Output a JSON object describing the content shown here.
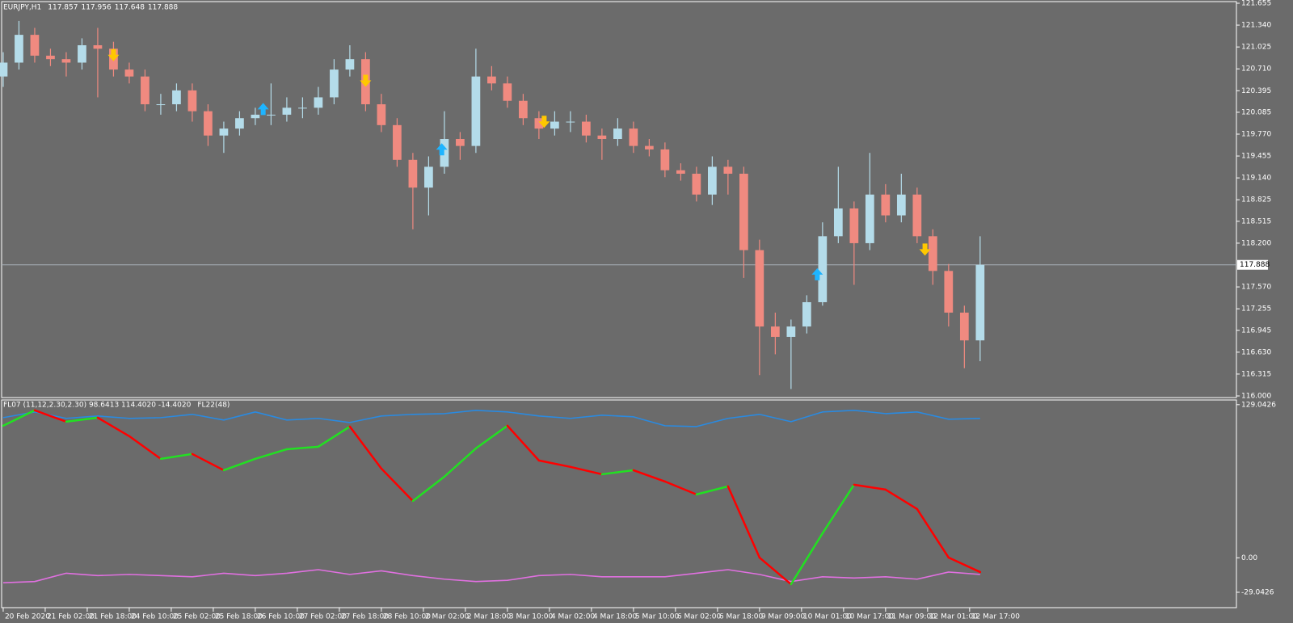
{
  "chart_data": [
    {
      "type": "candlestick",
      "title": "EURJPY,H1",
      "ohlc": [
        "117.857",
        "117.956",
        "117.648",
        "117.888"
      ],
      "x": [
        0,
        6,
        12,
        18,
        24,
        30,
        36,
        42,
        48,
        54,
        60,
        66,
        72,
        78,
        84,
        90,
        96,
        102,
        108,
        114,
        120,
        126,
        132,
        138,
        144,
        150,
        156,
        162,
        168,
        174,
        180,
        186,
        192,
        198,
        204,
        210,
        216,
        222,
        228,
        234,
        240,
        246,
        252,
        258,
        264,
        270,
        276,
        282,
        288,
        294,
        300,
        306,
        312,
        318,
        324,
        330,
        336,
        342,
        348,
        354,
        360,
        366,
        372
      ],
      "open": [
        120.6,
        120.8,
        121.2,
        120.9,
        120.85,
        120.8,
        121.05,
        121.0,
        120.7,
        120.6,
        120.2,
        120.2,
        120.4,
        120.1,
        119.75,
        119.85,
        120.0,
        120.05,
        120.05,
        120.15,
        120.15,
        120.3,
        120.7,
        120.85,
        120.2,
        119.9,
        119.4,
        119.0,
        119.3,
        119.7,
        119.6,
        120.6,
        120.5,
        120.25,
        120.0,
        119.85,
        119.95,
        119.95,
        119.75,
        119.7,
        119.85,
        119.6,
        119.55,
        119.25,
        119.2,
        118.9,
        119.3,
        119.2,
        118.1,
        117.0,
        116.85,
        117.0,
        117.35,
        118.3,
        118.7,
        118.2,
        118.9,
        118.6,
        118.9,
        118.3,
        117.8,
        117.2,
        116.8
      ],
      "high": [
        120.95,
        121.4,
        121.3,
        121.0,
        120.95,
        121.15,
        121.3,
        121.1,
        120.8,
        120.7,
        120.35,
        120.5,
        120.5,
        120.2,
        119.95,
        120.1,
        120.15,
        120.5,
        120.3,
        120.3,
        120.45,
        120.85,
        121.05,
        120.95,
        120.35,
        120.0,
        119.5,
        119.45,
        120.1,
        119.8,
        121.0,
        120.75,
        120.6,
        120.35,
        120.1,
        120.1,
        120.1,
        120.05,
        119.85,
        120.0,
        119.95,
        119.7,
        119.65,
        119.35,
        119.3,
        119.45,
        119.4,
        119.3,
        118.25,
        117.2,
        117.1,
        117.45,
        118.5,
        119.3,
        118.8,
        119.5,
        119.05,
        119.2,
        119.0,
        118.4,
        117.9,
        117.3,
        118.3
      ],
      "low": [
        120.45,
        120.7,
        120.8,
        120.75,
        120.6,
        120.7,
        120.3,
        120.6,
        120.5,
        120.1,
        120.05,
        120.1,
        119.95,
        119.6,
        119.5,
        119.75,
        119.9,
        119.9,
        119.95,
        120.0,
        120.05,
        120.2,
        120.6,
        120.1,
        119.8,
        119.3,
        118.4,
        118.6,
        119.2,
        119.4,
        119.5,
        120.4,
        120.15,
        119.9,
        119.7,
        119.75,
        119.8,
        119.65,
        119.4,
        119.6,
        119.5,
        119.45,
        119.15,
        119.1,
        118.8,
        118.75,
        118.9,
        117.7,
        116.3,
        116.6,
        116.1,
        116.9,
        117.3,
        118.2,
        117.6,
        118.1,
        118.5,
        118.5,
        118.2,
        117.6,
        117.0,
        116.4,
        116.5
      ],
      "close": [
        120.8,
        121.2,
        120.9,
        120.85,
        120.8,
        121.05,
        121.0,
        120.7,
        120.6,
        120.2,
        120.2,
        120.4,
        120.1,
        119.75,
        119.85,
        120.0,
        120.05,
        120.05,
        120.15,
        120.15,
        120.3,
        120.7,
        120.85,
        120.2,
        119.9,
        119.4,
        119.0,
        119.3,
        119.7,
        119.6,
        120.6,
        120.5,
        120.25,
        120.0,
        119.85,
        119.95,
        119.95,
        119.75,
        119.7,
        119.85,
        119.6,
        119.55,
        119.25,
        119.2,
        118.9,
        119.3,
        119.2,
        118.1,
        117.0,
        116.85,
        117.0,
        117.35,
        118.3,
        118.7,
        118.2,
        118.9,
        118.6,
        118.9,
        118.3,
        117.8,
        117.2,
        116.8,
        117.888
      ],
      "up_color": "#b4dcea",
      "down_color": "#f08a80",
      "xlim": [
        -0.6,
        469.6
      ],
      "ylim": [
        116.0,
        121.655
      ],
      "yticks": [
        121.655,
        {
          "value": 121.34,
          "label": "121.340"
        },
        121.025,
        {
          "value": 120.71,
          "label": "120.710"
        },
        120.395,
        120.085,
        {
          "value": 119.77,
          "label": "119.770"
        },
        119.455,
        {
          "value": 119.14,
          "label": "119.140"
        },
        118.825,
        118.515,
        {
          "value": 118.2,
          "label": "118.200"
        },
        {
          "value": 117.57,
          "label": "117.570"
        },
        117.255,
        116.945,
        {
          "value": 116.63,
          "label": "116.630"
        },
        116.315,
        {
          "value": 116.0,
          "label": "116.000"
        }
      ],
      "xticks": [
        {
          "value": 0,
          "label": "20 Feb 2020"
        },
        {
          "value": 16,
          "label": "21 Feb 02:00"
        },
        {
          "value": 32,
          "label": "21 Feb 18:00"
        },
        {
          "value": 48,
          "label": "24 Feb 10:00"
        },
        {
          "value": 64,
          "label": "25 Feb 02:00"
        },
        {
          "value": 80,
          "label": "25 Feb 18:00"
        },
        {
          "value": 96,
          "label": "26 Feb 10:00"
        },
        {
          "value": 112,
          "label": "27 Feb 02:00"
        },
        {
          "value": 128,
          "label": "27 Feb 18:00"
        },
        {
          "value": 144,
          "label": "28 Feb 10:00"
        },
        {
          "value": 160,
          "label": "2 Mar 02:00"
        },
        {
          "value": 176,
          "label": "2 Mar 18:00"
        },
        {
          "value": 192,
          "label": "3 Mar 10:00"
        },
        {
          "value": 208,
          "label": "4 Mar 02:00"
        },
        {
          "value": 224,
          "label": "4 Mar 18:00"
        },
        {
          "value": 240,
          "label": "5 Mar 10:00"
        },
        {
          "value": 256,
          "label": "6 Mar 02:00"
        },
        {
          "value": 272,
          "label": "6 Mar 18:00"
        },
        {
          "value": 288,
          "label": "9 Mar 09:00"
        },
        {
          "value": 304,
          "label": "10 Mar 01:00"
        },
        {
          "value": 320,
          "label": "10 Mar 17:00"
        },
        {
          "value": 336,
          "label": "11 Mar 09:00"
        },
        {
          "value": 352,
          "label": "12 Mar 01:00"
        },
        {
          "value": 368,
          "label": "12 Mar 17:00"
        }
      ],
      "current_price": 117.888,
      "sell_arrows": {
        "color": "#ffc800",
        "x": [
          42,
          138,
          206,
          351
        ],
        "y": [
          120.89,
          120.52,
          119.93,
          118.09
        ]
      },
      "buy_arrows": {
        "color": "#1eb4ff",
        "x": [
          99,
          167,
          310
        ],
        "y": [
          120.15,
          119.57,
          117.77
        ]
      }
    },
    {
      "type": "line",
      "title": "FL07 (11,12,2.30,2.30) 98.6413 114.4020 -14.4020",
      "subtitle": "FL22(48)",
      "x": [
        0,
        12,
        24,
        36,
        48,
        60,
        72,
        84,
        96,
        108,
        120,
        132,
        144,
        156,
        168,
        180,
        192,
        204,
        216,
        228,
        240,
        252,
        264,
        276,
        288,
        300,
        312,
        324,
        336,
        348,
        360,
        372
      ],
      "xlim": [
        -0.6,
        469.6
      ],
      "ylim": [
        -42,
        133
      ],
      "yticks": [
        129.0426,
        {
          "value": 0,
          "label": "0.00"
        },
        -29.0426
      ],
      "series": [
        {
          "color": "#2a8ae0",
          "values": [
            118.1,
            122.9,
            117.5,
            119.5,
            117.5,
            118.1,
            120.9,
            116.1,
            122.9,
            116.1,
            117.5,
            114.0,
            119.5,
            120.9,
            121.5,
            124.3,
            122.9,
            119.5,
            117.5,
            120.2,
            118.8,
            111.3,
            110.6,
            117.5,
            120.9,
            114.7,
            122.9,
            124.3,
            121.5,
            122.9,
            116.8,
            117.5
          ]
        },
        {
          "color": "#e070e0",
          "values": [
            -21,
            -20,
            -13,
            -15,
            -14,
            -15,
            -16,
            -13,
            -15,
            -13,
            -10,
            -14,
            -11,
            -15,
            -18,
            -20,
            -19,
            -15,
            -14,
            -16,
            -16,
            -16,
            -13,
            -10,
            -14,
            -20,
            -16,
            -17,
            -16,
            -18,
            -12,
            -14
          ]
        },
        {
          "color": "#ff0000",
          "rising_color": "#22e022",
          "values": [
            111.3,
            124.3,
            114.7,
            118.1,
            102.5,
            83.4,
            87.5,
            73.8,
            83.4,
            91.5,
            93.6,
            110.6,
            75.2,
            47.9,
            68.4,
            92.2,
            111.3,
            82.0,
            76.6,
            70.4,
            73.8,
            64.3,
            53.4,
            60.2,
            0.2,
            -22.3,
            20.7,
            61.6,
            57.5,
            41.1,
            0.2,
            -12.0
          ]
        }
      ]
    }
  ]
}
